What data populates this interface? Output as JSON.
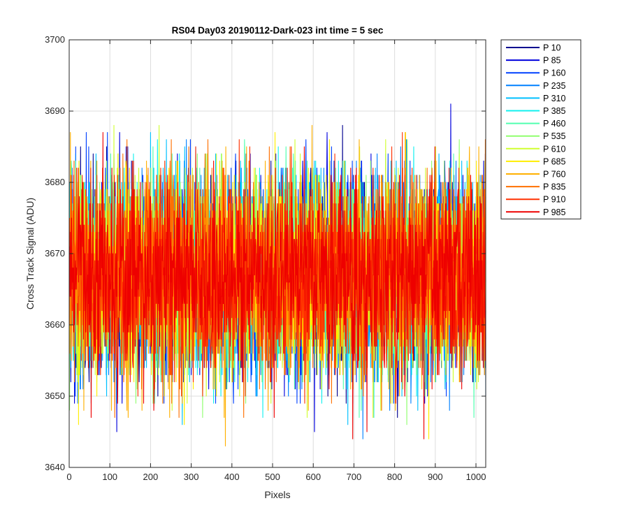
{
  "chart_data": {
    "type": "line",
    "title": "RS04 Day03 20190112-Dark-023 int time = 5 sec",
    "xlabel": "Pixels",
    "ylabel": "Cross Track Signal (ADU)",
    "xlim": [
      0,
      1024
    ],
    "ylim": [
      3640,
      3700
    ],
    "x_ticks": [
      0,
      100,
      200,
      300,
      400,
      500,
      600,
      700,
      800,
      900,
      1000
    ],
    "y_ticks": [
      3640,
      3650,
      3660,
      3670,
      3680,
      3690,
      3700
    ],
    "grid": true,
    "legend_position": "outside-top-right",
    "x_range": [
      1,
      1024
    ],
    "mean": 3667,
    "noise_std": 7,
    "series": [
      {
        "name": "P 10",
        "color": "#00008f"
      },
      {
        "name": "P 85",
        "color": "#0000dd"
      },
      {
        "name": "P 160",
        "color": "#0040ff"
      },
      {
        "name": "P 235",
        "color": "#0080ff"
      },
      {
        "name": "P 310",
        "color": "#00c0ff"
      },
      {
        "name": "P 385",
        "color": "#10f0ef"
      },
      {
        "name": "P 460",
        "color": "#50ffaf"
      },
      {
        "name": "P 535",
        "color": "#90ff6f"
      },
      {
        "name": "P 610",
        "color": "#d0ff2f"
      },
      {
        "name": "P 685",
        "color": "#ffee00"
      },
      {
        "name": "P 760",
        "color": "#ffb000"
      },
      {
        "name": "P 835",
        "color": "#ff7000"
      },
      {
        "name": "P 910",
        "color": "#ff3000"
      },
      {
        "name": "P 985",
        "color": "#ee0000"
      }
    ]
  }
}
